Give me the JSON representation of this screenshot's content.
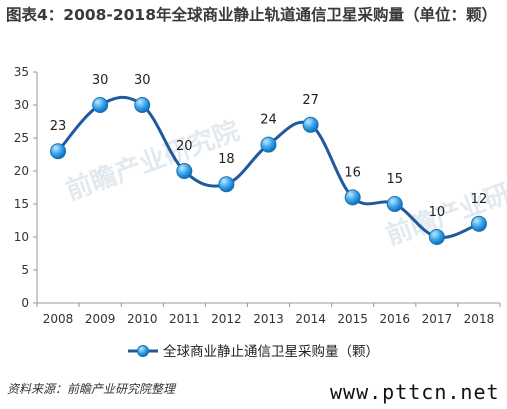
{
  "title": "图表4：2008-2018年全球商业静止轨道通信卫星采购量（单位：颗）",
  "source": "资料来源：前瞻产业研究院整理",
  "site": "www.pttcn.net",
  "watermark": "前瞻产业研究院",
  "chart_data": {
    "type": "line",
    "categories": [
      "2008",
      "2009",
      "2010",
      "2011",
      "2012",
      "2013",
      "2014",
      "2015",
      "2016",
      "2017",
      "2018"
    ],
    "series": [
      {
        "name": "全球商业静止通信卫星采购量（颗）",
        "values": [
          23,
          30,
          30,
          20,
          18,
          24,
          27,
          16,
          15,
          10,
          12
        ],
        "color": "#1e8fd8"
      }
    ],
    "ylim": [
      0,
      35
    ],
    "yticks": [
      0,
      5,
      10,
      15,
      20,
      25,
      30,
      35
    ],
    "smooth": true,
    "markers": true,
    "data_labels": true,
    "legend": "bottom-center",
    "grid": false,
    "line_color": "#1e5a9c"
  }
}
